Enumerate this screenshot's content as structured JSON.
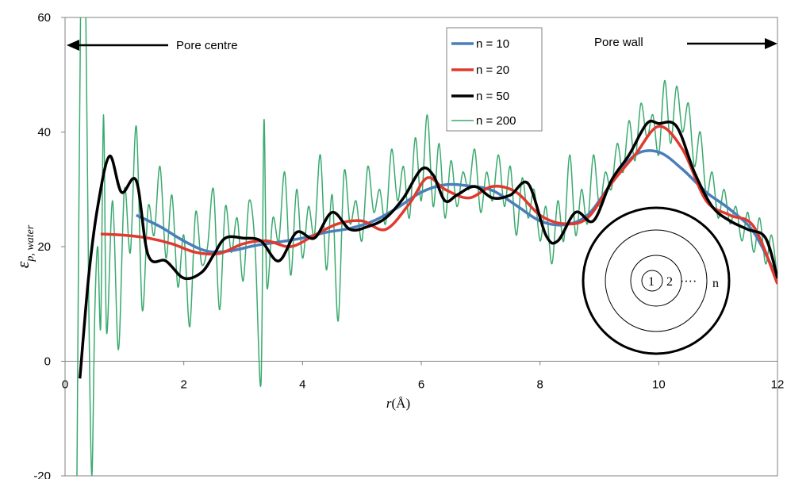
{
  "chart_data": {
    "type": "line",
    "xlabel_italic": "r",
    "xlabel_unit": "(Å)",
    "ylabel_main": "ε",
    "ylabel_sub": "p, water",
    "xlim": [
      0,
      12
    ],
    "ylim": [
      -20,
      60
    ],
    "x_ticks": [
      0,
      2,
      4,
      6,
      8,
      10,
      12
    ],
    "y_ticks": [
      -20,
      0,
      20,
      40,
      60
    ],
    "x_tick_labels": [
      "0",
      "2",
      "4",
      "6",
      "8",
      "10",
      "12"
    ],
    "y_tick_labels": [
      "-20",
      "0",
      "20",
      "40",
      "60"
    ],
    "grid": false,
    "legend_position": "top-center",
    "annotations": {
      "left_arrow": "Pore centre",
      "right_arrow": "Pore wall"
    },
    "inset": {
      "labels": [
        "1",
        "2",
        "····",
        "n"
      ]
    },
    "series": [
      {
        "name": "n = 10",
        "color": "#4a7ebb",
        "x": [
          1.2,
          1.6,
          2.0,
          2.4,
          2.8,
          3.2,
          3.6,
          4.0,
          4.4,
          4.8,
          5.2,
          5.6,
          6.0,
          6.4,
          6.8,
          7.2,
          7.6,
          8.0,
          8.4,
          8.8,
          9.2,
          9.6,
          10.0,
          10.4,
          10.8,
          11.2,
          11.6,
          12.0
        ],
        "y": [
          25.5,
          23.5,
          21.0,
          19.2,
          19.3,
          20.2,
          20.8,
          21.5,
          22.5,
          23.2,
          24.5,
          26.8,
          29.5,
          30.8,
          30.6,
          29.8,
          27.2,
          24.5,
          23.8,
          25.5,
          31.0,
          36.0,
          36.5,
          33.5,
          29.5,
          26.5,
          22.5,
          14.5
        ]
      },
      {
        "name": "n = 20",
        "color": "#e03a2f",
        "x": [
          0.6,
          1.0,
          1.4,
          1.8,
          2.2,
          2.6,
          3.0,
          3.4,
          3.8,
          4.2,
          4.6,
          5.0,
          5.4,
          5.8,
          6.1,
          6.4,
          6.8,
          7.2,
          7.6,
          8.0,
          8.4,
          8.8,
          9.2,
          9.6,
          10.0,
          10.4,
          10.8,
          11.2,
          11.6,
          12.0
        ],
        "y": [
          22.2,
          22.0,
          21.5,
          20.5,
          19.0,
          18.8,
          20.5,
          21.0,
          20.0,
          22.0,
          24.0,
          24.5,
          23.0,
          27.5,
          32.0,
          30.0,
          28.5,
          30.5,
          29.5,
          25.5,
          24.0,
          25.0,
          31.0,
          36.0,
          41.0,
          37.0,
          28.0,
          25.5,
          23.5,
          13.5
        ]
      },
      {
        "name": "n = 50",
        "color": "#000000",
        "x": [
          0.25,
          0.4,
          0.55,
          0.75,
          0.95,
          1.2,
          1.4,
          1.7,
          2.0,
          2.3,
          2.5,
          2.7,
          3.0,
          3.3,
          3.6,
          3.9,
          4.2,
          4.5,
          4.8,
          5.1,
          5.4,
          5.7,
          6.0,
          6.2,
          6.4,
          6.6,
          6.9,
          7.2,
          7.5,
          7.8,
          8.1,
          8.3,
          8.6,
          8.9,
          9.2,
          9.5,
          9.8,
          10.0,
          10.3,
          10.6,
          10.9,
          11.2,
          11.5,
          11.8,
          12.0
        ],
        "y": [
          -3.0,
          15.0,
          27.0,
          35.8,
          29.5,
          31.5,
          18.5,
          17.5,
          14.5,
          15.5,
          18.5,
          21.5,
          21.5,
          21.0,
          17.5,
          22.5,
          21.5,
          26.0,
          23.0,
          23.5,
          25.0,
          28.5,
          33.5,
          32.5,
          28.0,
          29.0,
          30.5,
          28.5,
          29.0,
          31.0,
          22.0,
          21.0,
          26.0,
          24.5,
          31.5,
          36.0,
          41.5,
          41.5,
          41.0,
          33.0,
          27.0,
          24.5,
          23.0,
          21.5,
          14.5
        ]
      },
      {
        "name": "n = 200",
        "color": "#3aaa6e",
        "x": [
          0.2,
          0.26,
          0.3,
          0.35,
          0.4,
          0.45,
          0.5,
          0.55,
          0.6,
          0.65,
          0.7,
          0.8,
          0.9,
          1.0,
          1.1,
          1.2,
          1.3,
          1.4,
          1.5,
          1.6,
          1.7,
          1.8,
          1.9,
          2.0,
          2.1,
          2.2,
          2.3,
          2.4,
          2.5,
          2.6,
          2.7,
          2.8,
          2.9,
          3.0,
          3.1,
          3.2,
          3.3,
          3.35,
          3.4,
          3.5,
          3.6,
          3.7,
          3.8,
          3.9,
          4.0,
          4.1,
          4.2,
          4.3,
          4.4,
          4.5,
          4.6,
          4.7,
          4.8,
          4.9,
          5.0,
          5.1,
          5.2,
          5.3,
          5.4,
          5.5,
          5.6,
          5.7,
          5.8,
          5.9,
          6.0,
          6.1,
          6.2,
          6.3,
          6.4,
          6.5,
          6.6,
          6.7,
          6.8,
          6.9,
          7.0,
          7.1,
          7.2,
          7.3,
          7.4,
          7.5,
          7.6,
          7.7,
          7.8,
          7.9,
          8.0,
          8.1,
          8.2,
          8.3,
          8.4,
          8.5,
          8.6,
          8.7,
          8.8,
          8.9,
          9.0,
          9.1,
          9.2,
          9.3,
          9.4,
          9.5,
          9.6,
          9.7,
          9.8,
          9.9,
          10.0,
          10.1,
          10.2,
          10.3,
          10.4,
          10.5,
          10.6,
          10.7,
          10.8,
          10.9,
          11.0,
          11.1,
          11.2,
          11.3,
          11.4,
          11.5,
          11.6,
          11.7,
          11.8,
          11.9,
          12.0
        ],
        "y": [
          -20,
          60,
          62,
          60,
          10,
          -20,
          8,
          20,
          6,
          43,
          5,
          28,
          2,
          30,
          19,
          41,
          9,
          27,
          22,
          34,
          18,
          29,
          13,
          22,
          6,
          26,
          17,
          20,
          30,
          9,
          27,
          19,
          25,
          14,
          28,
          20,
          -4,
          42,
          13,
          25,
          21,
          33,
          15,
          30,
          18,
          27,
          22,
          36,
          16,
          29,
          7,
          33,
          24,
          28,
          21,
          34,
          26,
          30,
          24,
          37,
          28,
          34,
          25,
          39,
          28,
          43,
          27,
          38,
          25,
          35,
          27,
          33,
          30,
          37,
          26,
          33,
          28,
          36,
          27,
          34,
          22,
          32,
          25,
          30,
          21,
          27,
          17,
          28,
          21,
          36,
          22,
          30,
          24,
          36,
          27,
          33,
          30,
          38,
          33,
          42,
          35,
          45,
          39,
          43,
          36,
          49,
          38,
          48,
          40,
          45,
          34,
          40,
          29,
          33,
          25,
          30,
          24,
          27,
          21,
          26,
          19,
          25,
          17,
          22,
          14
        ]
      }
    ]
  }
}
